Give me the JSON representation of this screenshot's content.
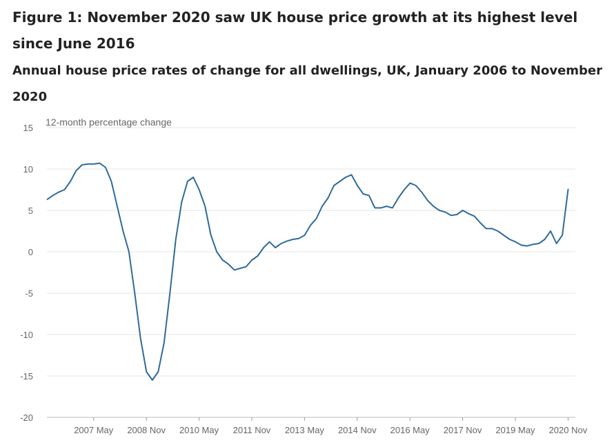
{
  "title": "Figure 1: November 2020 saw UK house price growth at its highest level since June 2016",
  "subtitle": "Annual house price rates of change for all dwellings, UK, January 2006 to November 2020",
  "chart_data": {
    "type": "line",
    "ylabel": "12-month percentage change",
    "xlabel": "",
    "ylim": [
      -20,
      15
    ],
    "yticks": [
      15,
      10,
      5,
      0,
      -5,
      -10,
      -15,
      -20
    ],
    "grid": true,
    "xticks": [
      {
        "label": "2007 May",
        "t": 2007.33
      },
      {
        "label": "2008 Nov",
        "t": 2008.83
      },
      {
        "label": "2010 May",
        "t": 2010.33
      },
      {
        "label": "2011 Nov",
        "t": 2011.83
      },
      {
        "label": "2013 May",
        "t": 2013.33
      },
      {
        "label": "2014 Nov",
        "t": 2014.83
      },
      {
        "label": "2016 May",
        "t": 2016.33
      },
      {
        "label": "2017 Nov",
        "t": 2017.83
      },
      {
        "label": "2019 May",
        "t": 2019.33
      },
      {
        "label": "2020 Nov",
        "t": 2020.83
      }
    ],
    "series": [
      {
        "color": "#2e6a99",
        "x": [
          "2006-01",
          "2006-03",
          "2006-05",
          "2006-07",
          "2006-09",
          "2006-11",
          "2007-01",
          "2007-03",
          "2007-05",
          "2007-07",
          "2007-09",
          "2007-11",
          "2008-01",
          "2008-03",
          "2008-05",
          "2008-07",
          "2008-09",
          "2008-11",
          "2009-01",
          "2009-03",
          "2009-05",
          "2009-07",
          "2009-09",
          "2009-11",
          "2010-01",
          "2010-03",
          "2010-05",
          "2010-07",
          "2010-09",
          "2010-11",
          "2011-01",
          "2011-03",
          "2011-05",
          "2011-07",
          "2011-09",
          "2011-11",
          "2012-01",
          "2012-03",
          "2012-05",
          "2012-07",
          "2012-09",
          "2012-11",
          "2013-01",
          "2013-03",
          "2013-05",
          "2013-07",
          "2013-09",
          "2013-11",
          "2014-01",
          "2014-03",
          "2014-05",
          "2014-07",
          "2014-09",
          "2014-11",
          "2015-01",
          "2015-03",
          "2015-05",
          "2015-07",
          "2015-09",
          "2015-11",
          "2016-01",
          "2016-03",
          "2016-05",
          "2016-07",
          "2016-09",
          "2016-11",
          "2017-01",
          "2017-03",
          "2017-05",
          "2017-07",
          "2017-09",
          "2017-11",
          "2018-01",
          "2018-03",
          "2018-05",
          "2018-07",
          "2018-09",
          "2018-11",
          "2019-01",
          "2019-03",
          "2019-05",
          "2019-07",
          "2019-09",
          "2019-11",
          "2020-01",
          "2020-03",
          "2020-05",
          "2020-07",
          "2020-09",
          "2020-11"
        ],
        "y": [
          6.3,
          6.8,
          7.2,
          7.5,
          8.5,
          9.8,
          10.5,
          10.6,
          10.6,
          10.7,
          10.2,
          8.5,
          5.5,
          2.5,
          0.0,
          -5.0,
          -10.5,
          -14.5,
          -15.5,
          -14.5,
          -11.0,
          -5.0,
          1.5,
          6.0,
          8.5,
          9.0,
          7.5,
          5.5,
          2.0,
          0.0,
          -1.0,
          -1.5,
          -2.2,
          -2.0,
          -1.8,
          -1.0,
          -0.5,
          0.5,
          1.2,
          0.5,
          1.0,
          1.3,
          1.5,
          1.6,
          2.0,
          3.2,
          4.0,
          5.5,
          6.5,
          8.0,
          8.5,
          9.0,
          9.3,
          8.0,
          7.0,
          6.8,
          5.3,
          5.3,
          5.5,
          5.3,
          6.5,
          7.5,
          8.3,
          8.0,
          7.2,
          6.2,
          5.5,
          5.0,
          4.8,
          4.4,
          4.5,
          5.0,
          4.6,
          4.3,
          3.5,
          2.8,
          2.8,
          2.5,
          2.0,
          1.5,
          1.2,
          0.8,
          0.7,
          0.9,
          1.0,
          1.5,
          2.5,
          1.0,
          2.0,
          7.6
        ]
      }
    ]
  }
}
